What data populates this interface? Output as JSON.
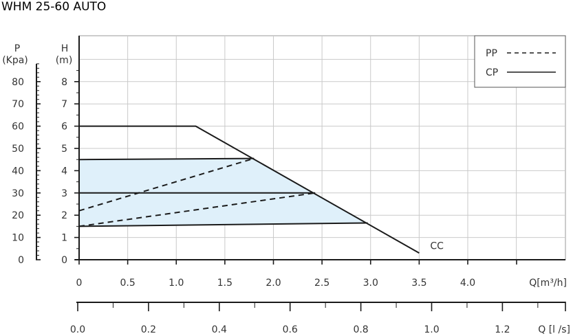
{
  "chart_data": {
    "type": "line",
    "title": "WHM 25-60 AUTO",
    "x_primary": {
      "label": "Q[m³/h]",
      "range": [
        0,
        4.0
      ],
      "ticks": [
        0,
        0.5,
        1.0,
        1.5,
        2.0,
        2.5,
        3.0,
        3.5,
        4.0
      ],
      "tick_labels": [
        "0",
        "0.5",
        "1.0",
        "1.5",
        "2.0",
        "2.5",
        "3.0",
        "3.5",
        "4.0"
      ]
    },
    "x_secondary": {
      "label": "Q  [l /s]",
      "ticks": [
        0.0,
        0.2,
        0.4,
        0.6,
        0.8,
        1.0,
        1.2
      ],
      "tick_labels": [
        "0.0",
        "0.2",
        "0.4",
        "0.6",
        "0.8",
        "1.0",
        "1.2"
      ]
    },
    "y_primary": {
      "label_line1": "H",
      "label_line2": "(m)",
      "range": [
        0,
        9
      ],
      "ticks": [
        0,
        1,
        2,
        3,
        4,
        5,
        6,
        7,
        8
      ],
      "tick_labels": [
        "0",
        "1",
        "2",
        "3",
        "4",
        "5",
        "6",
        "7",
        "8"
      ]
    },
    "y_secondary": {
      "label_line1": "P",
      "label_line2": "(Kpa)",
      "ticks": [
        0,
        10,
        20,
        30,
        40,
        50,
        60,
        70,
        80
      ],
      "tick_labels": [
        "0",
        "10",
        "20",
        "30",
        "40",
        "50",
        "60",
        "70",
        "80"
      ]
    },
    "grid": true,
    "legend": {
      "placement": "top-right",
      "entries": [
        {
          "label": "PP",
          "style": "dashed"
        },
        {
          "label": "CP",
          "style": "solid"
        }
      ]
    },
    "shaded_region": {
      "color": "#dff0fa",
      "points": [
        [
          0,
          1.5
        ],
        [
          0,
          4.5
        ],
        [
          1.8,
          4.55
        ],
        [
          2.97,
          1.65
        ]
      ]
    },
    "series": [
      {
        "id": "cc",
        "label": "CC",
        "style": "solid",
        "points": [
          [
            0,
            6.0
          ],
          [
            1.2,
            6.0
          ],
          [
            3.5,
            0.3
          ]
        ]
      },
      {
        "id": "cp-high",
        "style": "solid",
        "points": [
          [
            0,
            4.5
          ],
          [
            1.8,
            4.55
          ]
        ]
      },
      {
        "id": "cp-mid",
        "style": "solid",
        "points": [
          [
            0,
            3.0
          ],
          [
            2.43,
            3.0
          ]
        ]
      },
      {
        "id": "cp-low",
        "style": "solid",
        "points": [
          [
            0,
            1.5
          ],
          [
            2.97,
            1.65
          ]
        ]
      },
      {
        "id": "pp-high",
        "style": "dashed",
        "points": [
          [
            0,
            2.2
          ],
          [
            1.8,
            4.55
          ]
        ]
      },
      {
        "id": "pp-low",
        "style": "dashed",
        "points": [
          [
            0,
            1.5
          ],
          [
            2.43,
            3.0
          ]
        ]
      }
    ],
    "colors": {
      "line": "#1a1a1a",
      "grid": "#c9c9c9",
      "axis": "#1a1a1a",
      "text": "#333333"
    }
  }
}
